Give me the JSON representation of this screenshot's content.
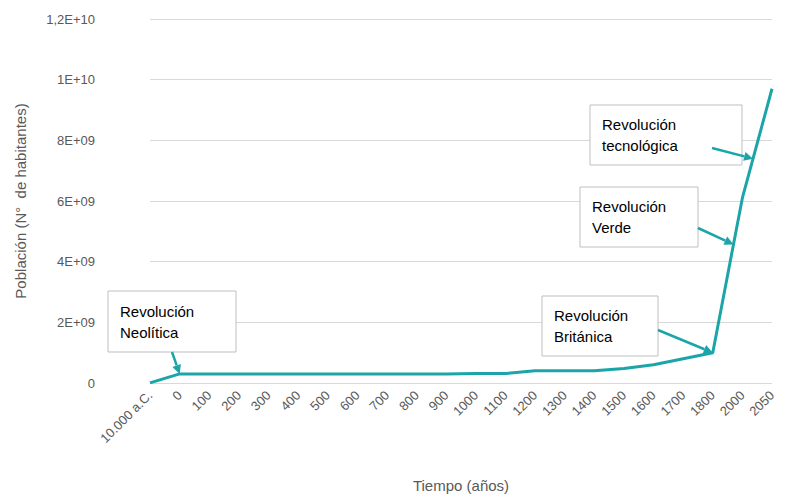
{
  "chart_data": {
    "type": "line",
    "xlabel": "Tiempo (años)",
    "ylabel": "Población (N°  de habitantes)",
    "categories": [
      "10.000 a.C.",
      "0",
      "100",
      "200",
      "300",
      "400",
      "500",
      "600",
      "700",
      "800",
      "900",
      "1000",
      "1100",
      "1200",
      "1300",
      "1400",
      "1500",
      "1600",
      "1700",
      "1800",
      "2000",
      "2050"
    ],
    "values": [
      5000000,
      300000000,
      300000000,
      300000000,
      300000000,
      300000000,
      300000000,
      300000000,
      300000000,
      300000000,
      300000000,
      310000000,
      310000000,
      400000000,
      400000000,
      400000000,
      480000000,
      600000000,
      800000000,
      1000000000,
      6100000000,
      9700000000
    ],
    "color": "#1ba5a9",
    "ylim": [
      0,
      12000000000
    ],
    "yticks": [
      0,
      {
        "value": 2000000000,
        "label": "2E+09"
      },
      {
        "value": 4000000000,
        "label": "4E+09"
      },
      {
        "value": 6000000000,
        "label": "6E+09"
      },
      {
        "value": 8000000000,
        "label": "8E+09"
      },
      {
        "value": 10000000000,
        "label": "1E+10"
      },
      {
        "value": 12000000000,
        "label": "1,2E+10"
      }
    ],
    "grid": true,
    "annotations": [
      {
        "text": "Revolución\nNeolítica",
        "x": "0"
      },
      {
        "text": "Revolución\nBritánica",
        "x": "1800"
      },
      {
        "text": "Revolución\nVerde",
        "x": "2000"
      },
      {
        "text": "Revolución\ntecnológica",
        "x": "2050"
      }
    ]
  }
}
